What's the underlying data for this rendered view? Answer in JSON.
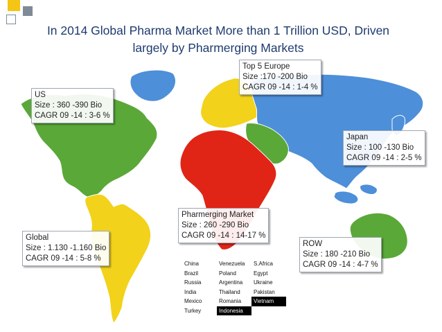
{
  "title": {
    "line1": "In 2014 Global Pharma Market More than 1 Trillion USD, Driven",
    "line2": "largely by Pharmerging Markets"
  },
  "colors": {
    "us": "#5aa838",
    "latin_america": "#f2d21a",
    "europe": "#f2d21a",
    "africa": "#e02416",
    "middle_east": "#5aa838",
    "asia": "#4d8fd9",
    "oceania": "#5aa838",
    "greenland": "#4d8fd9",
    "ocean": "#ffffff"
  },
  "regions": {
    "us": {
      "name": "US",
      "size": "Size : 360 -390 Bio",
      "cagr": "CAGR 09 -14 : 3-6 %"
    },
    "europe": {
      "name": "Top 5 Europe",
      "size": "Size :170 -200 Bio",
      "cagr": "CAGR 09 -14 : 1-4 %"
    },
    "japan": {
      "name": "Japan",
      "size": "Size : 100 -130 Bio",
      "cagr": "CAGR 09 -14 : 2-5 %"
    },
    "pharmerging": {
      "name": "Pharmerging Market",
      "size": "Size : 260 -290 Bio",
      "cagr": "CAGR 09 -14 : 14-17 %"
    },
    "global": {
      "name": "Global",
      "size": "Size : 1.130 -1.160 Bio",
      "cagr": "CAGR 09 -14 : 5-8 %"
    },
    "row": {
      "name": "ROW",
      "size": "Size : 180 -210 Bio",
      "cagr": "CAGR 09 -14 : 4-7 %"
    }
  },
  "pharmerging_countries": [
    [
      "China",
      "Venezuela",
      "S.Africa"
    ],
    [
      "Brazil",
      "Poland",
      "Egypt"
    ],
    [
      "Russia",
      "Argentina",
      "Ukraine"
    ],
    [
      "India",
      "Thailand",
      "Pakistan"
    ],
    [
      "Mexico",
      "Romania",
      "Vietnam"
    ],
    [
      "Turkey",
      "Indonesia",
      ""
    ]
  ]
}
